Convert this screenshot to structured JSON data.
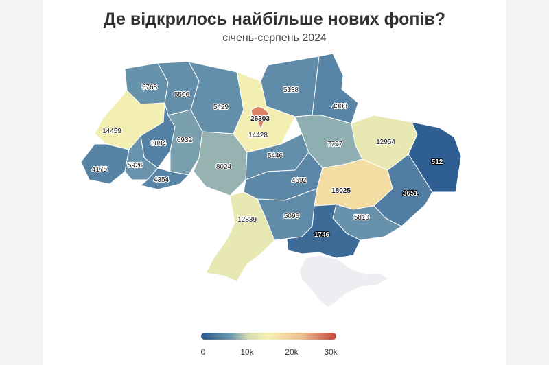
{
  "title": "Де відкрилось найбільше нових фопів?",
  "subtitle": "січень-серпень 2024",
  "colors": {
    "background": "#ffffff",
    "no_data": "#eeeef2",
    "scale": [
      "#2a5a8f",
      "#6f99b0",
      "#d6ddb2",
      "#f7f2b2",
      "#eebe8c",
      "#c8463c"
    ]
  },
  "map_data": {
    "regions": [
      {
        "key": "volyn",
        "value": 5768
      },
      {
        "key": "rivne",
        "value": 5506
      },
      {
        "key": "zhytomyr",
        "value": 5429
      },
      {
        "key": "kyiv_oblast",
        "value": 14428
      },
      {
        "key": "kyiv_city",
        "value": 26303
      },
      {
        "key": "chernihiv",
        "value": 5138
      },
      {
        "key": "sumy",
        "value": 4303
      },
      {
        "key": "kharkiv",
        "value": 12954
      },
      {
        "key": "luhansk",
        "value": 512
      },
      {
        "key": "lviv",
        "value": 14459
      },
      {
        "key": "ternopil",
        "value": 3884
      },
      {
        "key": "khmelnytskyi",
        "value": 6932
      },
      {
        "key": "vinnytsia",
        "value": 8024
      },
      {
        "key": "cherkasy",
        "value": 5446
      },
      {
        "key": "poltava",
        "value": 7727
      },
      {
        "key": "zakarpattia",
        "value": 4175
      },
      {
        "key": "ivano_frankivsk",
        "value": 5926
      },
      {
        "key": "chernivtsi",
        "value": 4354
      },
      {
        "key": "kirovohrad",
        "value": 4692
      },
      {
        "key": "dnipropetrovsk",
        "value": 18025
      },
      {
        "key": "donetsk",
        "value": 3651
      },
      {
        "key": "odesa",
        "value": 12839
      },
      {
        "key": "mykolaiv",
        "value": 5096
      },
      {
        "key": "zaporizhzhia",
        "value": 5810
      },
      {
        "key": "kherson",
        "value": 1746
      }
    ]
  },
  "legend": {
    "min": 0,
    "max": 30000,
    "tick_labels": [
      "0",
      "10k",
      "20k",
      "30k"
    ],
    "tick_values": [
      0,
      10000,
      20000,
      30000
    ]
  }
}
